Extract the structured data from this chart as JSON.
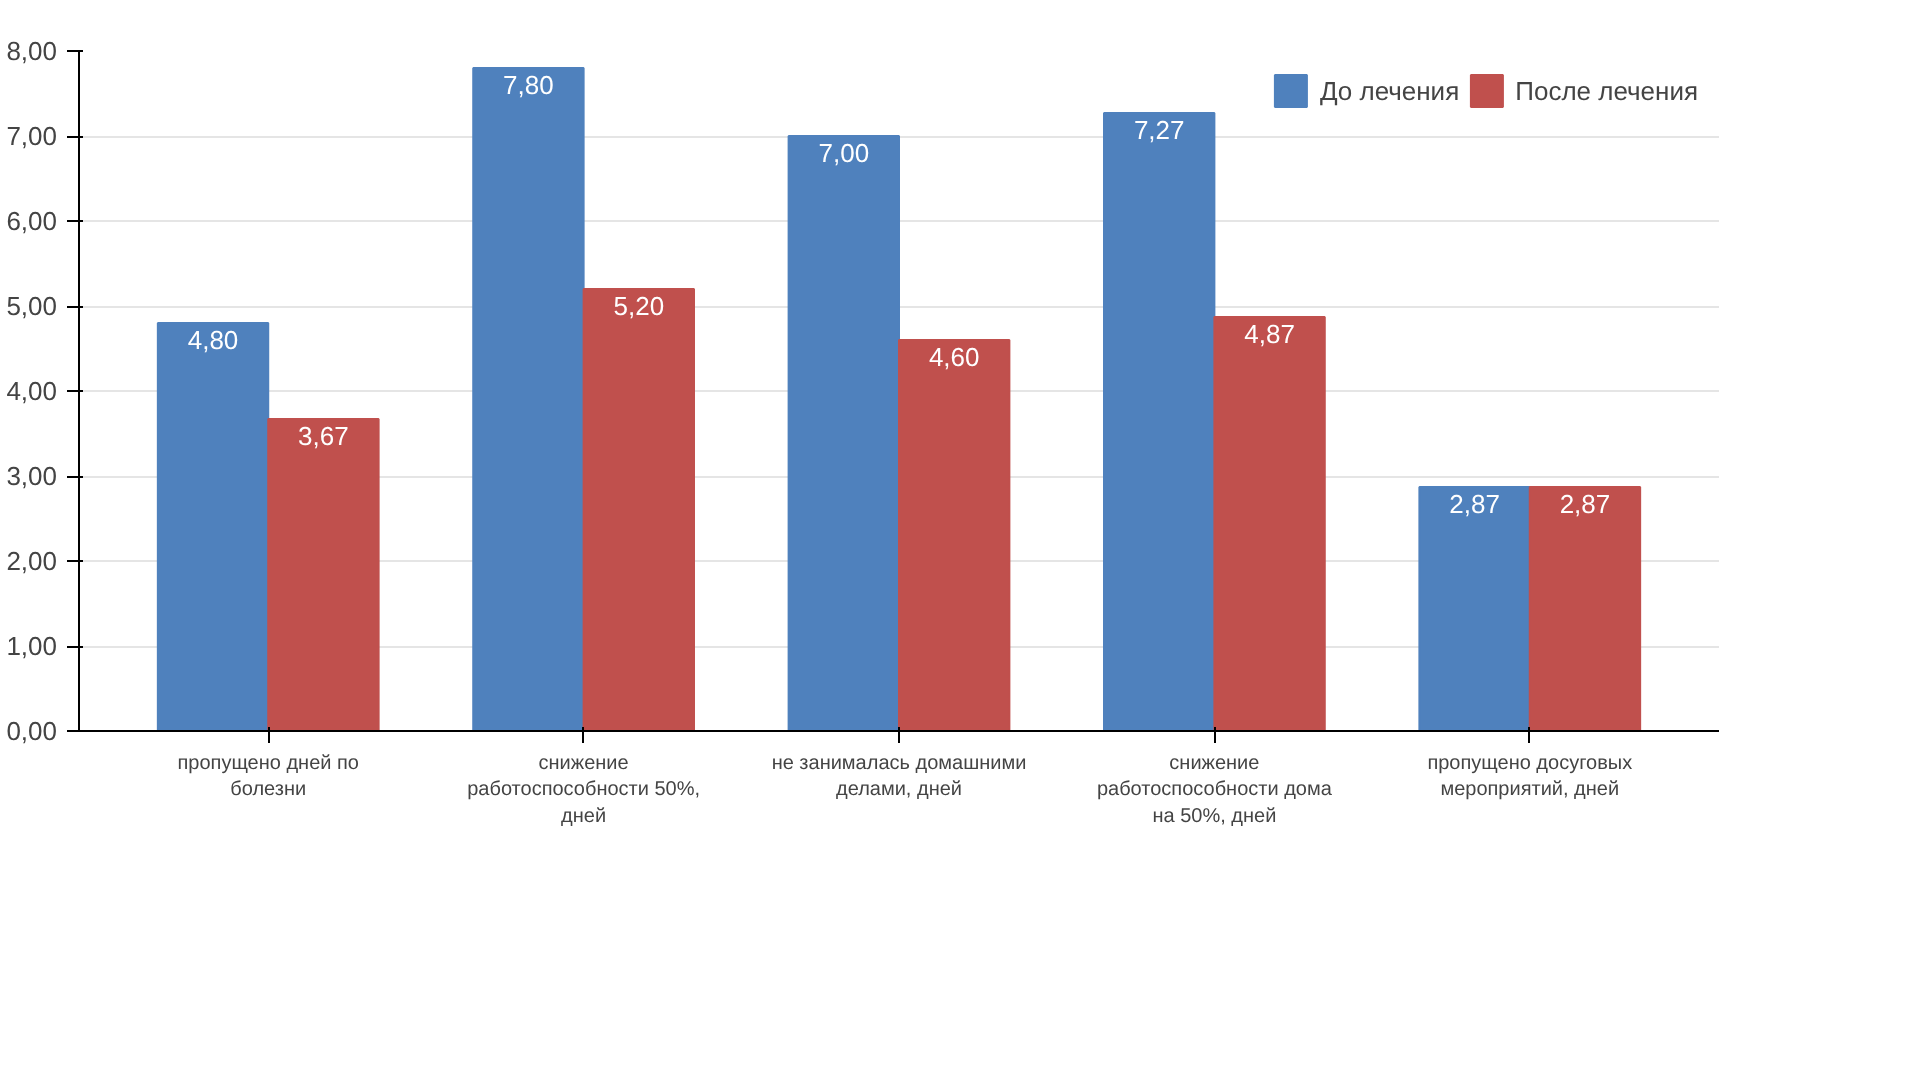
{
  "chart_data": {
    "type": "bar",
    "categories": [
      "пропущено дней по болезни",
      "снижение работоспособности 50%, дней",
      "не занималась домашними делами, дней",
      "снижение работоспособности дома на 50%, дней",
      "пропущено досуговых мероприятий, дней"
    ],
    "series": [
      {
        "name": "До лечения",
        "color": "#4f81bd",
        "values": [
          4.8,
          7.8,
          7.0,
          7.27,
          2.87
        ],
        "value_labels": [
          "4,80",
          "7,80",
          "7,00",
          "7,27",
          "2,87"
        ]
      },
      {
        "name": "После лечения",
        "color": "#c0504d",
        "values": [
          3.67,
          5.2,
          4.6,
          4.87,
          2.87
        ],
        "value_labels": [
          "3,67",
          "5,20",
          "4,60",
          "4,87",
          "2,87"
        ]
      }
    ],
    "ylim": [
      0,
      8
    ],
    "yticks": [
      {
        "value": 0,
        "label": "0,00"
      },
      {
        "value": 1,
        "label": "1,00"
      },
      {
        "value": 2,
        "label": "2,00"
      },
      {
        "value": 3,
        "label": "3,00"
      },
      {
        "value": 4,
        "label": "4,00"
      },
      {
        "value": 5,
        "label": "5,00"
      },
      {
        "value": 6,
        "label": "6,00"
      },
      {
        "value": 7,
        "label": "7,00"
      },
      {
        "value": 8,
        "label": "8,00"
      }
    ],
    "grid": "y",
    "legend": "top right"
  }
}
